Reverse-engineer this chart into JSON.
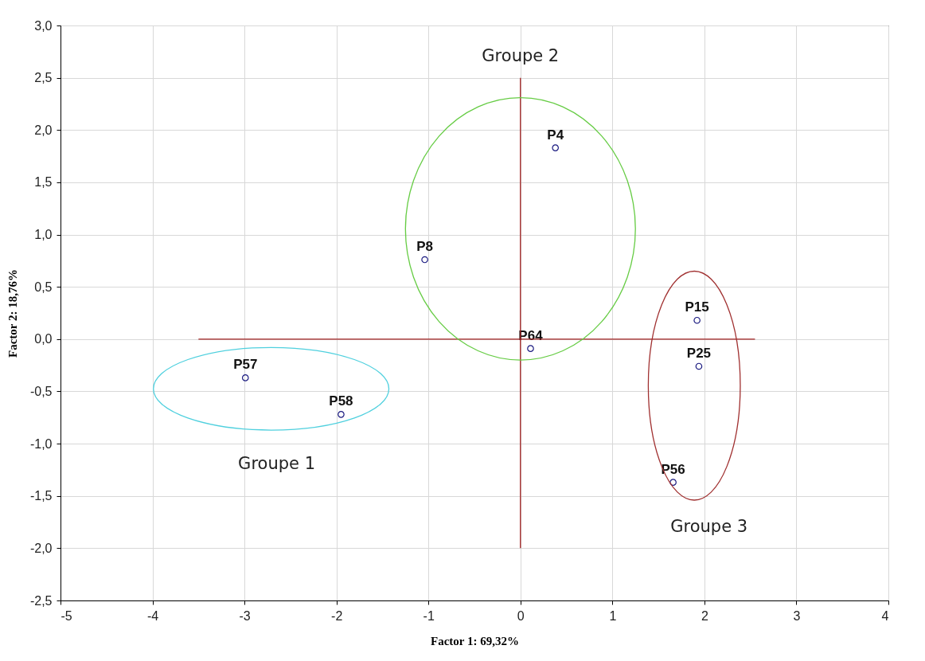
{
  "chart_data": {
    "type": "scatter",
    "xlabel": "Factor 1: 69,32%",
    "ylabel": "Factor 2: 18,76%",
    "xlim": [
      -5,
      4
    ],
    "xticks": [
      {
        "value": -5,
        "label": "-5"
      },
      {
        "value": -4,
        "label": "-4"
      },
      {
        "value": -3,
        "label": "-3"
      },
      {
        "value": -2,
        "label": "-2"
      },
      {
        "value": -1,
        "label": "-1"
      },
      0,
      1,
      2,
      3,
      4
    ],
    "ylim": [
      -2.5,
      3
    ],
    "yticks": [
      {
        "value": -2.5,
        "label": "-2,5"
      },
      {
        "value": -2,
        "label": "-2,0"
      },
      {
        "value": -1.5,
        "label": "-1,5"
      },
      {
        "value": -1,
        "label": "-1,0"
      },
      {
        "value": -0.5,
        "label": "-0,5"
      },
      {
        "value": 0,
        "label": "0,0"
      },
      {
        "value": 0.5,
        "label": "0,5"
      },
      {
        "value": 1,
        "label": "1,0"
      },
      {
        "value": 1.5,
        "label": "1,5"
      },
      {
        "value": 2,
        "label": "2,0"
      },
      {
        "value": 2.5,
        "label": "2,5"
      },
      {
        "value": 3,
        "label": "3,0"
      }
    ],
    "grid": true,
    "marker": "circle",
    "series": [
      {
        "name": "P4",
        "color": "#1a1a80",
        "x": [
          0.38
        ],
        "values": [
          1.83
        ]
      },
      {
        "name": "P8",
        "color": "#1a1a80",
        "x": [
          -1.04
        ],
        "values": [
          0.76
        ]
      },
      {
        "name": "P64",
        "color": "#1a1a80",
        "x": [
          0.11
        ],
        "values": [
          -0.09
        ]
      },
      {
        "name": "P15",
        "color": "#1a1a80",
        "x": [
          1.92
        ],
        "values": [
          0.18
        ]
      },
      {
        "name": "P25",
        "color": "#1a1a80",
        "x": [
          1.94
        ],
        "values": [
          -0.26
        ]
      },
      {
        "name": "P56",
        "color": "#1a1a80",
        "x": [
          1.66
        ],
        "values": [
          -1.37
        ]
      },
      {
        "name": "P57",
        "color": "#1a1a80",
        "x": [
          -2.99
        ],
        "values": [
          -0.37
        ]
      },
      {
        "name": "P58",
        "color": "#1a1a80",
        "x": [
          -1.95
        ],
        "values": [
          -0.72
        ]
      },
      {
        "type": "line",
        "marker": "none",
        "color": "#a02020",
        "x": [
          -3.5,
          2.55
        ],
        "values": [
          0,
          0
        ]
      },
      {
        "type": "line",
        "marker": "none",
        "color": "#a02020",
        "x": [
          0,
          0
        ],
        "values": [
          -2,
          2.5
        ]
      }
    ],
    "annotations": [
      "Groupe 1",
      "Groupe 2",
      "Groupe 3"
    ]
  }
}
